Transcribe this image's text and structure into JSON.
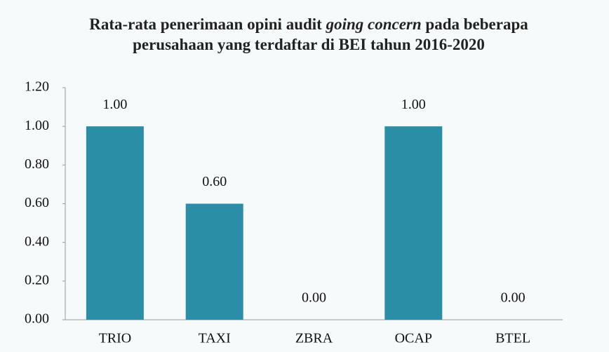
{
  "chart_data": {
    "type": "bar",
    "title": [
      "Rata-rata penerimaan opini audit",
      "going concern",
      "pada beberapa perusahaan yang terdaftar di BEI tahun 2016-2020"
    ],
    "categories": [
      "TRIO",
      "TAXI",
      "ZBRA",
      "OCAP",
      "BTEL"
    ],
    "values": [
      1.0,
      0.6,
      0.0,
      1.0,
      0.0
    ],
    "value_labels": [
      "1.00",
      "0.60",
      "0.00",
      "1.00",
      "0.00"
    ],
    "color": "#2a8ea6",
    "ylim": [
      0,
      1.2
    ],
    "yticks": [
      {
        "value": 0,
        "label": "0.00"
      },
      {
        "value": 0.2,
        "label": "0.20"
      },
      {
        "value": 0.4,
        "label": "0.40"
      },
      {
        "value": 0.6,
        "label": "0.60"
      },
      {
        "value": 0.8,
        "label": "0.80"
      },
      {
        "value": 1.0,
        "label": "1.00"
      },
      {
        "value": 1.2,
        "label": "1.20"
      }
    ],
    "grid": false
  }
}
